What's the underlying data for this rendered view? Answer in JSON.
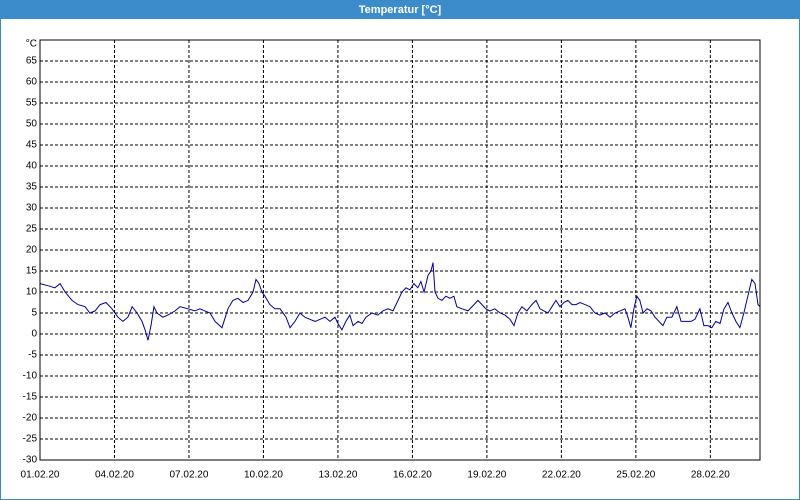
{
  "chart_data": {
    "type": "line",
    "title": "Temperatur [°C]",
    "y_unit": "°C",
    "color": "#0000a0",
    "grid": true,
    "xlim": [
      0,
      29
    ],
    "xticks": [
      {
        "value": 0,
        "label": "01.02.20"
      },
      {
        "value": 3,
        "label": "04.02.20"
      },
      {
        "value": 6,
        "label": "07.02.20"
      },
      {
        "value": 9,
        "label": "10.02.20"
      },
      {
        "value": 12,
        "label": "13.02.20"
      },
      {
        "value": 15,
        "label": "16.02.20"
      },
      {
        "value": 18,
        "label": "19.02.20"
      },
      {
        "value": 21,
        "label": "22.02.20"
      },
      {
        "value": 24,
        "label": "25.02.20"
      },
      {
        "value": 27,
        "label": "28.02.20"
      }
    ],
    "ylim": [
      -30,
      70
    ],
    "yticks": [
      -30,
      -25,
      -20,
      -15,
      -10,
      -5,
      0,
      5,
      10,
      15,
      20,
      25,
      30,
      35,
      40,
      45,
      50,
      55,
      60,
      65
    ],
    "x": [
      0,
      0.32,
      0.6,
      0.81,
      1.01,
      1.29,
      1.53,
      1.81,
      2.01,
      2.22,
      2.42,
      2.66,
      2.9,
      3.14,
      3.34,
      3.54,
      3.71,
      3.91,
      4.11,
      4.23,
      4.35,
      4.47,
      4.59,
      4.71,
      4.95,
      5.15,
      5.44,
      5.64,
      5.96,
      6.24,
      6.44,
      6.64,
      6.85,
      7.05,
      7.33,
      7.57,
      7.77,
      7.97,
      8.18,
      8.38,
      8.58,
      8.7,
      8.82,
      8.94,
      9.06,
      9.26,
      9.46,
      9.67,
      9.91,
      10.07,
      10.27,
      10.47,
      10.67,
      10.87,
      11.08,
      11.28,
      11.48,
      11.68,
      11.88,
      12.0,
      12.16,
      12.32,
      12.48,
      12.61,
      12.81,
      12.97,
      13.13,
      13.37,
      13.61,
      13.81,
      14.01,
      14.22,
      14.42,
      14.58,
      14.74,
      14.9,
      15.06,
      15.22,
      15.34,
      15.47,
      15.63,
      15.75,
      15.83,
      15.91,
      16.03,
      16.19,
      16.35,
      16.51,
      16.67,
      16.79,
      17.0,
      17.24,
      17.48,
      17.64,
      17.8,
      17.96,
      18.12,
      18.32,
      18.53,
      18.73,
      18.93,
      19.09,
      19.25,
      19.41,
      19.61,
      19.81,
      19.98,
      20.14,
      20.3,
      20.46,
      20.62,
      20.78,
      20.94,
      21.1,
      21.26,
      21.43,
      21.59,
      21.75,
      21.95,
      22.15,
      22.35,
      22.55,
      22.76,
      22.96,
      23.16,
      23.36,
      23.56,
      23.68,
      23.8,
      23.92,
      24.04,
      24.16,
      24.29,
      24.45,
      24.61,
      24.77,
      24.93,
      25.09,
      25.25,
      25.45,
      25.65,
      25.82,
      26.02,
      26.22,
      26.38,
      26.58,
      26.74,
      26.9,
      27.06,
      27.22,
      27.39,
      27.55,
      27.71,
      27.87,
      28.03,
      28.19,
      28.35,
      28.51,
      28.67,
      28.8,
      28.92,
      29
    ],
    "values": [
      12,
      11.5,
      11,
      12,
      10,
      8,
      7,
      6.5,
      5,
      5.5,
      7,
      7.5,
      6,
      4,
      3,
      4,
      6.5,
      5,
      3,
      1,
      -1.5,
      2,
      6.5,
      5,
      4,
      4.5,
      5.5,
      6.5,
      6,
      5.5,
      6,
      5.5,
      5,
      3,
      1.5,
      6,
      8,
      8.5,
      7.5,
      8,
      10,
      13,
      12,
      10,
      9,
      7,
      6,
      6,
      4,
      1.5,
      3,
      5,
      4,
      3.5,
      3,
      3.5,
      4,
      3,
      4,
      2.5,
      1,
      3,
      4.5,
      2,
      3,
      2.5,
      4,
      5,
      4.5,
      5.5,
      6,
      5.5,
      8,
      10,
      11,
      10.5,
      12,
      11,
      12.5,
      10,
      14,
      15,
      17,
      10,
      8.5,
      8,
      9,
      8.5,
      9,
      6.5,
      6,
      5.5,
      7,
      8,
      7,
      6,
      5.5,
      6,
      5,
      4.5,
      3.5,
      2,
      5,
      6.5,
      5.5,
      7,
      8,
      6,
      5.5,
      5,
      6.5,
      8,
      6.5,
      7.5,
      8,
      7,
      7,
      7.5,
      7,
      6.5,
      5,
      4.5,
      5,
      4,
      5,
      5.5,
      6,
      4,
      1.5,
      6,
      9,
      8,
      5,
      6,
      5.5,
      4,
      3,
      2,
      4,
      4,
      6.5,
      3,
      3,
      3,
      3.5,
      6,
      2,
      2,
      1.5,
      3,
      2.5,
      6,
      7.5,
      5,
      3,
      1.5,
      5,
      9,
      13,
      12,
      7,
      6.5
    ]
  }
}
